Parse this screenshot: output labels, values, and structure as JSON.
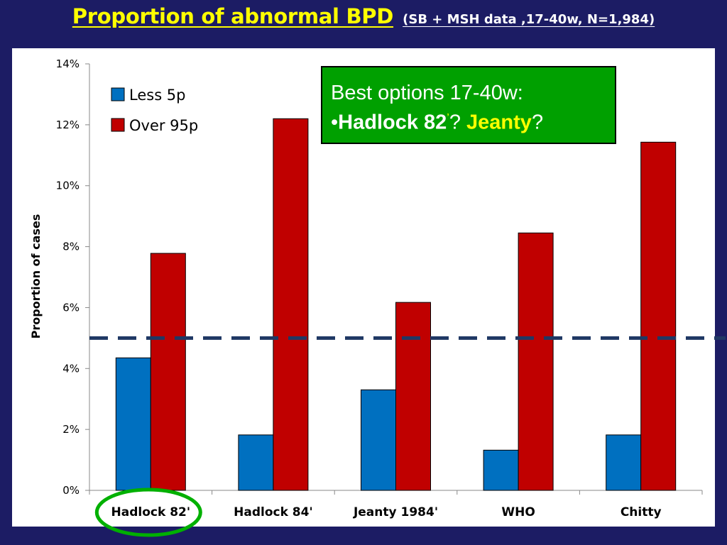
{
  "title": {
    "main": "Proportion of abnormal BPD",
    "sub": "(SB + MSH data ,17-40w, N=1,984)"
  },
  "callout": {
    "line1": "Best options 17-40w:",
    "bullet": "•",
    "option1": "Hadlock 82",
    "option1_mark": "’",
    "sep1": "? ",
    "option2": "Jeanty",
    "sep2": "?"
  },
  "colors": {
    "background": "#1c1c64",
    "title": "#ffff00",
    "less5p": "#0070c0",
    "over95p": "#c00000",
    "reference_line": "#1f3864",
    "callout": "#00a000",
    "highlight_ring": "#00b000"
  },
  "chart_data": {
    "type": "bar",
    "categories": [
      "Hadlock 82'",
      "Hadlock 84'",
      "Jeanty 1984'",
      "WHO",
      "Chitty"
    ],
    "series": [
      {
        "name": "Less 5p",
        "values": [
          4.35,
          1.82,
          3.3,
          1.32,
          1.82
        ]
      },
      {
        "name": "Over 95p",
        "values": [
          7.78,
          12.2,
          6.17,
          8.45,
          11.43
        ]
      }
    ],
    "xlabel": "",
    "ylabel": "Proportion of cases",
    "ylim": [
      0,
      14
    ],
    "yticks": [
      "0%",
      "2%",
      "4%",
      "6%",
      "8%",
      "10%",
      "12%",
      "14%"
    ],
    "reference_line": {
      "value": 5,
      "style": "dashed"
    },
    "highlighted_category": "Hadlock 82'",
    "legend": {
      "placement": "top-left"
    },
    "grid": false
  }
}
